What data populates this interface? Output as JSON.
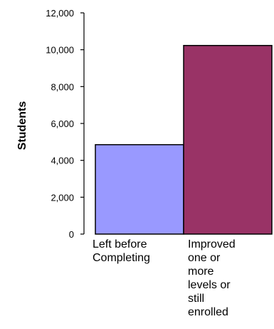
{
  "chart_data": {
    "type": "bar",
    "title": "",
    "xlabel": "",
    "ylabel": "Students",
    "categories": [
      [
        "Left before",
        "Completing"
      ],
      [
        "Improved",
        "one or",
        "more",
        "levels or",
        "still",
        "enrolled"
      ]
    ],
    "values": [
      4850,
      10230
    ],
    "colors": [
      "#9999ff",
      "#993366"
    ],
    "ylim": [
      0,
      12000
    ],
    "yticks": [
      0,
      2000,
      4000,
      6000,
      8000,
      10000,
      12000
    ],
    "ytick_labels": [
      "0",
      "2,000",
      "4,000",
      "6,000",
      "8,000",
      "10,000",
      "12,000"
    ],
    "grid": false,
    "legend": "none"
  }
}
